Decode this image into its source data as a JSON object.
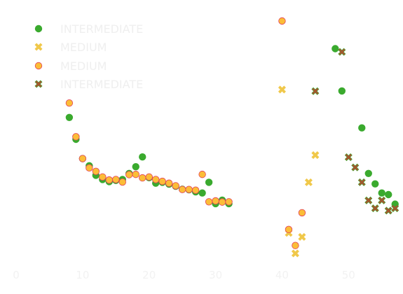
{
  "chart_data": {
    "type": "scatter",
    "title": "",
    "xlabel": "",
    "ylabel": "",
    "xlim": [
      0,
      58
    ],
    "ylim": [
      0,
      1
    ],
    "grid": false,
    "legend_position": "top-left",
    "x_ticks": [
      {
        "value": 0,
        "label": "0"
      },
      {
        "value": 10,
        "label": "10"
      },
      {
        "value": 20,
        "label": "20"
      },
      {
        "value": 30,
        "label": "30"
      },
      {
        "value": 40,
        "label": "40"
      },
      {
        "value": 50,
        "label": "50"
      }
    ],
    "series": [
      {
        "name": "INTERMEDIATE",
        "marker": "circle",
        "fill": "#3aaa2e",
        "stroke": "#3aaa2e",
        "points": [
          [
            8,
            0.585
          ],
          [
            9,
            0.491
          ],
          [
            10,
            0.408
          ],
          [
            11,
            0.377
          ],
          [
            12,
            0.336
          ],
          [
            13,
            0.318
          ],
          [
            14,
            0.309
          ],
          [
            15,
            0.314
          ],
          [
            16,
            0.318
          ],
          [
            17,
            0.344
          ],
          [
            18,
            0.373
          ],
          [
            19,
            0.415
          ],
          [
            20,
            0.326
          ],
          [
            21,
            0.302
          ],
          [
            22,
            0.306
          ],
          [
            23,
            0.298
          ],
          [
            24,
            0.289
          ],
          [
            25,
            0.276
          ],
          [
            26,
            0.274
          ],
          [
            27,
            0.265
          ],
          [
            28,
            0.26
          ],
          [
            29,
            0.306
          ],
          [
            30,
            0.214
          ],
          [
            31,
            0.229
          ],
          [
            32,
            0.214
          ],
          [
            48,
            0.881
          ],
          [
            49,
            0.699
          ],
          [
            52,
            0.54
          ],
          [
            53,
            0.344
          ],
          [
            54,
            0.299
          ],
          [
            55,
            0.26
          ],
          [
            56,
            0.253
          ],
          [
            57,
            0.212
          ]
        ]
      },
      {
        "name": "MEDIUM",
        "marker": "x",
        "fill": "#f0c84a",
        "stroke": "#f0c84a",
        "points": [
          [
            40,
            0.705
          ],
          [
            41,
            0.088
          ],
          [
            42,
            0.0
          ],
          [
            43,
            0.071
          ],
          [
            44,
            0.306
          ],
          [
            45,
            0.423
          ]
        ]
      },
      {
        "name": "MEDIUM",
        "marker": "circle",
        "fill": "#fbbd37",
        "stroke": "#e2405a",
        "points": [
          [
            8,
            0.647
          ],
          [
            9,
            0.502
          ],
          [
            10,
            0.408
          ],
          [
            11,
            0.368
          ],
          [
            12,
            0.353
          ],
          [
            13,
            0.329
          ],
          [
            14,
            0.316
          ],
          [
            15,
            0.318
          ],
          [
            16,
            0.307
          ],
          [
            17,
            0.339
          ],
          [
            18,
            0.34
          ],
          [
            19,
            0.325
          ],
          [
            20,
            0.329
          ],
          [
            21,
            0.318
          ],
          [
            22,
            0.31
          ],
          [
            23,
            0.302
          ],
          [
            24,
            0.291
          ],
          [
            25,
            0.275
          ],
          [
            26,
            0.275
          ],
          [
            27,
            0.272
          ],
          [
            28,
            0.34
          ],
          [
            29,
            0.222
          ],
          [
            30,
            0.226
          ],
          [
            31,
            0.221
          ],
          [
            32,
            0.222
          ],
          [
            40,
            1.0
          ],
          [
            41,
            0.103
          ],
          [
            42,
            0.034
          ],
          [
            43,
            0.175
          ]
        ]
      },
      {
        "name": "INTERMEDIATE",
        "marker": "x",
        "fill": "#a5552f",
        "stroke": "#3aaa2e",
        "points": [
          [
            45,
            0.698
          ],
          [
            49,
            0.867
          ],
          [
            50,
            0.414
          ],
          [
            51,
            0.37
          ],
          [
            52,
            0.306
          ],
          [
            53,
            0.228
          ],
          [
            54,
            0.194
          ],
          [
            55,
            0.228
          ],
          [
            56,
            0.184
          ],
          [
            57,
            0.194
          ]
        ]
      }
    ]
  }
}
